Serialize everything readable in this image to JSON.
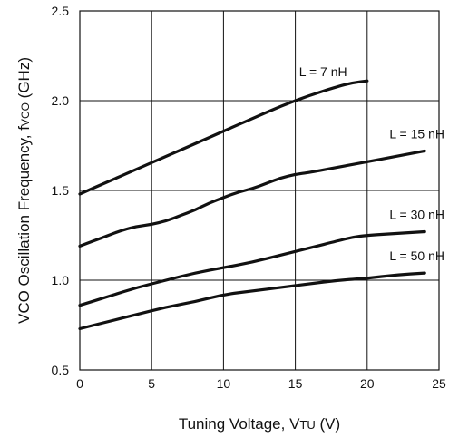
{
  "chart_data": {
    "type": "line",
    "title": "",
    "xlabel": {
      "main": "Tuning Voltage, V",
      "sub": "TU",
      "unit": " (V)"
    },
    "ylabel": {
      "main": "VCO Oscillation Frequency, f",
      "sub": "VCO",
      "unit": " (GHz)"
    },
    "xlim": [
      0,
      25
    ],
    "ylim": [
      0.5,
      2.5
    ],
    "x_ticks": [
      "0",
      "5",
      "10",
      "15",
      "20",
      "25"
    ],
    "y_ticks": [
      "0.5",
      "1.0",
      "1.5",
      "2.0",
      "2.5"
    ],
    "grid": true,
    "series": [
      {
        "name": "L = 7 nH",
        "x": [
          0,
          2,
          4,
          6,
          8,
          10,
          12,
          14,
          16,
          18,
          19,
          20
        ],
        "y": [
          1.48,
          1.55,
          1.62,
          1.69,
          1.76,
          1.83,
          1.9,
          1.97,
          2.03,
          2.08,
          2.1,
          2.11
        ]
      },
      {
        "name": "L = 15 nH",
        "x": [
          0,
          1,
          2,
          3,
          4,
          5,
          6,
          7,
          8,
          9,
          10,
          11,
          12,
          13,
          14,
          15,
          16,
          18,
          20,
          22,
          24
        ],
        "y": [
          1.19,
          1.22,
          1.25,
          1.28,
          1.3,
          1.31,
          1.33,
          1.36,
          1.39,
          1.43,
          1.46,
          1.49,
          1.51,
          1.54,
          1.57,
          1.59,
          1.6,
          1.63,
          1.66,
          1.69,
          1.72
        ]
      },
      {
        "name": "L = 30 nH",
        "x": [
          0,
          2,
          4,
          6,
          8,
          10,
          12,
          14,
          16,
          18,
          19,
          20,
          22,
          24
        ],
        "y": [
          0.86,
          0.91,
          0.96,
          1.0,
          1.04,
          1.07,
          1.1,
          1.14,
          1.18,
          1.22,
          1.24,
          1.25,
          1.26,
          1.27
        ]
      },
      {
        "name": "L = 50 nH",
        "x": [
          0,
          2,
          4,
          6,
          8,
          10,
          12,
          14,
          16,
          18,
          20,
          22,
          24
        ],
        "y": [
          0.73,
          0.77,
          0.81,
          0.85,
          0.88,
          0.92,
          0.94,
          0.96,
          0.98,
          1.0,
          1.01,
          1.03,
          1.04
        ]
      }
    ],
    "colors": {
      "line": "#111111",
      "grid": "#111111",
      "background": "#ffffff"
    }
  }
}
